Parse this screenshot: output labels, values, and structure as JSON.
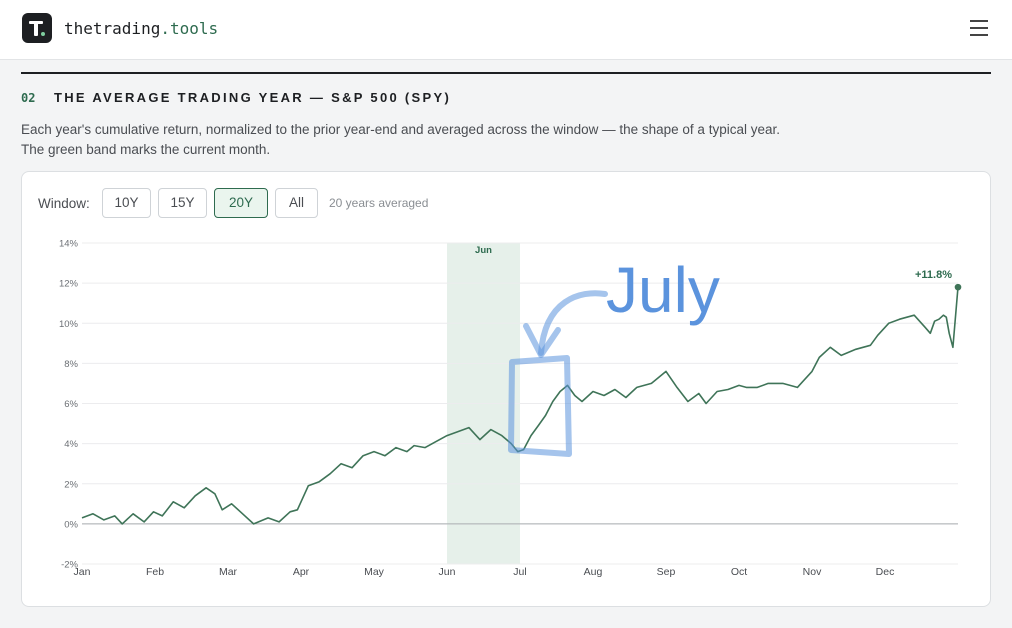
{
  "header": {
    "brand_main": "thetrading",
    "brand_accent": ".tools",
    "logo_letter": "T",
    "menu_icon": "hamburger-menu-icon"
  },
  "section": {
    "number": "02",
    "title": "THE AVERAGE TRADING YEAR — S&P 500 (SPY)",
    "description": "Each year's cumulative return, normalized to the prior year-end and averaged across the window — the shape of a typical year. The green band marks the current month."
  },
  "controls": {
    "window_label": "Window:",
    "options": [
      {
        "label": "10Y",
        "active": false
      },
      {
        "label": "15Y",
        "active": false
      },
      {
        "label": "20Y",
        "active": true
      },
      {
        "label": "All",
        "active": false
      }
    ],
    "note": "20 years averaged"
  },
  "annotation": {
    "text": "July",
    "color": "#5b93dd"
  },
  "colors": {
    "accent": "#2e6b4f",
    "line": "#3f7458",
    "band": "#e6f0ea",
    "annotation": "#5b93dd"
  },
  "chart_data": {
    "type": "line",
    "title": "",
    "xlabel": "",
    "ylabel": "",
    "y_unit": "%",
    "ylim": [
      -2,
      14
    ],
    "yticks": [
      "14%",
      "12%",
      "10%",
      "8%",
      "6%",
      "4%",
      "2%",
      "0%",
      "-2%"
    ],
    "ytick_values": [
      14,
      12,
      10,
      8,
      6,
      4,
      2,
      0,
      -2
    ],
    "months": [
      "Jan",
      "Feb",
      "Mar",
      "Apr",
      "May",
      "Jun",
      "Jul",
      "Aug",
      "Sep",
      "Oct",
      "Nov",
      "Dec"
    ],
    "month_positions": [
      0,
      1,
      2,
      3,
      4,
      5,
      6,
      7,
      8,
      9,
      10,
      11
    ],
    "highlight_band": {
      "label": "Jun",
      "start": 5,
      "end": 6
    },
    "grid": true,
    "end_label": "+11.8%",
    "series": [
      {
        "name": "",
        "x": [
          0,
          0.15,
          0.3,
          0.45,
          0.55,
          0.7,
          0.85,
          0.98,
          1.1,
          1.25,
          1.4,
          1.55,
          1.7,
          1.82,
          1.92,
          2.05,
          2.2,
          2.35,
          2.55,
          2.7,
          2.85,
          2.95,
          3.1,
          3.25,
          3.4,
          3.55,
          3.7,
          3.85,
          4.0,
          4.15,
          4.3,
          4.45,
          4.55,
          4.7,
          4.85,
          5.0,
          5.15,
          5.3,
          5.45,
          5.6,
          5.75,
          5.88,
          5.97,
          6.05,
          6.15,
          6.25,
          6.35,
          6.45,
          6.55,
          6.65,
          6.75,
          6.85,
          7.0,
          7.15,
          7.3,
          7.45,
          7.6,
          7.8,
          8.0,
          8.15,
          8.3,
          8.45,
          8.55,
          8.7,
          8.85,
          9.0,
          9.1,
          9.25,
          9.4,
          9.6,
          9.8,
          10.0,
          10.1,
          10.25,
          10.4,
          10.6,
          10.8,
          10.9,
          11.05,
          11.2,
          11.4,
          11.55,
          11.62,
          11.68,
          11.74,
          11.8,
          11.84,
          11.88,
          11.93,
          12.0
        ],
        "y": [
          0.3,
          0.5,
          0.2,
          0.4,
          0.0,
          0.5,
          0.1,
          0.6,
          0.4,
          1.1,
          0.8,
          1.4,
          1.8,
          1.5,
          0.7,
          1.0,
          0.5,
          0.0,
          0.3,
          0.1,
          0.6,
          0.7,
          1.9,
          2.1,
          2.5,
          3.0,
          2.8,
          3.4,
          3.6,
          3.4,
          3.8,
          3.6,
          3.9,
          3.8,
          4.1,
          4.4,
          4.6,
          4.8,
          4.2,
          4.7,
          4.4,
          4.0,
          3.6,
          3.7,
          4.4,
          4.9,
          5.4,
          6.1,
          6.6,
          6.9,
          6.4,
          6.1,
          6.6,
          6.4,
          6.7,
          6.3,
          6.8,
          7.0,
          7.6,
          6.8,
          6.1,
          6.5,
          6.0,
          6.6,
          6.7,
          6.9,
          6.8,
          6.8,
          7.0,
          7.0,
          6.8,
          7.6,
          8.3,
          8.8,
          8.4,
          8.7,
          8.9,
          9.4,
          10.0,
          10.2,
          10.4,
          9.8,
          9.5,
          10.1,
          10.2,
          10.4,
          10.3,
          9.5,
          8.8,
          11.8
        ]
      }
    ]
  }
}
